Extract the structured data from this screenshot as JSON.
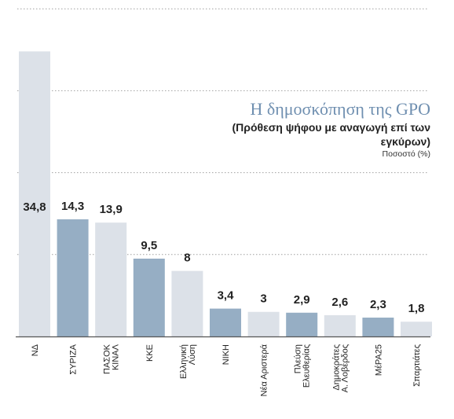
{
  "chart_data": {
    "type": "bar",
    "title": "Η δημοσκόπηση της GPO",
    "subtitle": "(Πρόθεση ψήφου με αναγωγή επί των εγκύρων)",
    "ylabel": "Ποσοστό (%)",
    "ylim": [
      0,
      40
    ],
    "grid": true,
    "categories": [
      "ΝΔ",
      "ΣΥΡΙΖΑ",
      "ΠΑΣΟΚ ΚΙΝΑΛ",
      "ΚΚΕ",
      "Ελληνική Λύση",
      "ΝΙΚΗ",
      "Νέα Αριστερά",
      "Πλεύση Ελευθερίας",
      "Δημοκράτες Α. Λοβέρδος",
      "ΜέΡΑ25",
      "Σπαρτιάτες"
    ],
    "label_lines": [
      [
        "ΝΔ"
      ],
      [
        "ΣΥΡΙΖΑ"
      ],
      [
        "ΠΑΣΟΚ",
        "ΚΙΝΑΛ"
      ],
      [
        "ΚΚΕ"
      ],
      [
        "Ελληνική",
        "Λύση"
      ],
      [
        "ΝΙΚΗ"
      ],
      [
        "Νέα Αριστερά"
      ],
      [
        "Πλεύση",
        "Ελευθερίας"
      ],
      [
        "Δημοκράτες",
        "Α. Λοβέρδος"
      ],
      [
        "ΜέΡΑ25"
      ],
      [
        "Σπαρτιάτες"
      ]
    ],
    "values": [
      34.8,
      14.3,
      13.9,
      9.5,
      8,
      3.4,
      3,
      2.9,
      2.6,
      2.3,
      1.8
    ],
    "value_labels": [
      "34,8",
      "14,3",
      "13,9",
      "9,5",
      "8",
      "3,4",
      "3",
      "2,9",
      "2,6",
      "2,3",
      "1,8"
    ],
    "colors": [
      "light",
      "dark",
      "light",
      "dark",
      "light",
      "dark",
      "light",
      "dark",
      "light",
      "dark",
      "light"
    ],
    "palette": {
      "dark": "#96aec4",
      "light": "#dce1e8",
      "grid": "#a0a0a0",
      "axis": "#555555"
    }
  }
}
